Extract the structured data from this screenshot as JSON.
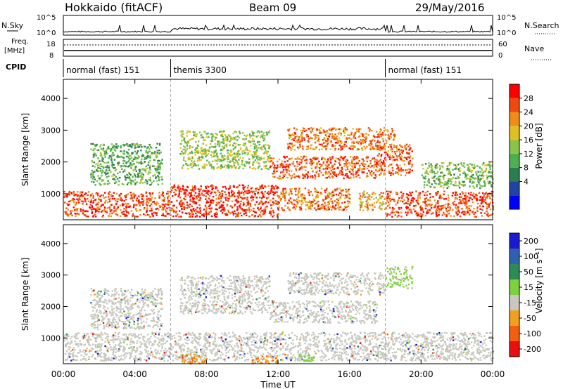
{
  "header": {
    "station": "Hokkaido (fitACF)",
    "beam": "Beam 09",
    "date": "29/May/2016"
  },
  "top_panels": {
    "nsky_label": "N.Sky",
    "nsky_ticks": [
      "10^5",
      "10^0"
    ],
    "nsearch_label": "N.Search",
    "nsearch_ticks": [
      "10^5",
      "10^0"
    ],
    "freq_label": "Freq.",
    "freq_unit": "[MHz]",
    "freq_ticks": [
      "18",
      "8"
    ],
    "nave_label": "Nave",
    "nave_ticks": [
      "60",
      "0"
    ],
    "cpid_label": "CPID",
    "cpid_segments": [
      {
        "label": "normal (fast) 151",
        "start_h": 0,
        "end_h": 6
      },
      {
        "label": "themis 3300",
        "start_h": 6,
        "end_h": 18
      },
      {
        "label": "normal (fast) 151",
        "start_h": 18,
        "end_h": 24
      }
    ]
  },
  "chart_data": [
    {
      "type": "heatmap",
      "panel": "power",
      "ylabel": "Slant Range [km]",
      "ylim": [
        180,
        4600
      ],
      "yticks": [
        "1000",
        "2000",
        "3000",
        "4000"
      ],
      "xlim_hours": [
        0,
        24
      ],
      "colorbar_label": "Power [dB]",
      "colorbar_ticks": [
        "4",
        "8",
        "12",
        "16",
        "20",
        "24",
        "28"
      ],
      "colorbar_colors": [
        "#0000ff",
        "#2244a0",
        "#2e7d4f",
        "#4caf50",
        "#8bc34a",
        "#e0c020",
        "#f08c1a",
        "#ee4a10",
        "#ff0000"
      ],
      "regions": [
        {
          "t0": 0.0,
          "t1": 6.0,
          "r0": 300,
          "r1": 1100,
          "level": 0.9
        },
        {
          "t0": 6.0,
          "t1": 12.0,
          "r0": 300,
          "r1": 1300,
          "level": 0.95
        },
        {
          "t0": 12.0,
          "t1": 16.0,
          "r0": 500,
          "r1": 1200,
          "level": 0.8
        },
        {
          "t0": 16.5,
          "t1": 18.0,
          "r0": 500,
          "r1": 1100,
          "level": 0.7
        },
        {
          "t0": 18.0,
          "t1": 24.0,
          "r0": 300,
          "r1": 1100,
          "level": 0.9
        },
        {
          "t0": 11.5,
          "t1": 17.5,
          "r0": 1500,
          "r1": 2200,
          "level": 0.85
        },
        {
          "t0": 12.5,
          "t1": 18.5,
          "r0": 2400,
          "r1": 3100,
          "level": 0.8
        },
        {
          "t0": 17.5,
          "t1": 19.5,
          "r0": 1600,
          "r1": 2600,
          "level": 0.85
        },
        {
          "t0": 6.5,
          "t1": 11.5,
          "r0": 1800,
          "r1": 3000,
          "level": 0.5
        },
        {
          "t0": 1.5,
          "t1": 5.5,
          "r0": 1300,
          "r1": 2600,
          "level": 0.4
        },
        {
          "t0": 20.0,
          "t1": 24.0,
          "r0": 1200,
          "r1": 2000,
          "level": 0.45
        }
      ]
    },
    {
      "type": "heatmap",
      "panel": "velocity",
      "ylabel": "Slant Range [km]",
      "ylim": [
        180,
        4600
      ],
      "yticks": [
        "1000",
        "2000",
        "3000",
        "4000"
      ],
      "xlabel": "Time UT",
      "xticks": [
        "00:00",
        "04:00",
        "08:00",
        "12:00",
        "16:00",
        "20:00",
        "00:00"
      ],
      "xlim_hours": [
        0,
        24
      ],
      "colorbar_label": "Velocity [m s⁻¹]",
      "colorbar_ticks": [
        "200",
        "100",
        "50",
        "15",
        "-15",
        "-50",
        "-100",
        "-200"
      ],
      "colorbar_colors": [
        "#1a1ad0",
        "#3060b0",
        "#2e8b57",
        "#7fd040",
        "#c8c8c0",
        "#f0a020",
        "#f06010",
        "#e81010"
      ],
      "regions": [
        {
          "t0": 0.0,
          "t1": 24.0,
          "r0": 300,
          "r1": 1200,
          "kind": "gray"
        },
        {
          "t0": 11.5,
          "t1": 17.5,
          "r0": 1500,
          "r1": 2200,
          "kind": "gray"
        },
        {
          "t0": 12.5,
          "t1": 18.0,
          "r0": 2400,
          "r1": 3100,
          "kind": "gray"
        },
        {
          "t0": 18.0,
          "t1": 19.5,
          "r0": 2600,
          "r1": 3300,
          "kind": "green"
        },
        {
          "t0": 6.5,
          "t1": 11.5,
          "r0": 1800,
          "r1": 3000,
          "kind": "gray"
        },
        {
          "t0": 1.5,
          "t1": 5.5,
          "r0": 1300,
          "r1": 2600,
          "kind": "gray"
        },
        {
          "t0": 6.5,
          "t1": 8.0,
          "r0": 200,
          "r1": 500,
          "kind": "orange"
        },
        {
          "t0": 10.5,
          "t1": 12.0,
          "r0": 200,
          "r1": 450,
          "kind": "orange"
        },
        {
          "t0": 13.0,
          "t1": 14.0,
          "r0": 250,
          "r1": 500,
          "kind": "green"
        }
      ]
    }
  ]
}
